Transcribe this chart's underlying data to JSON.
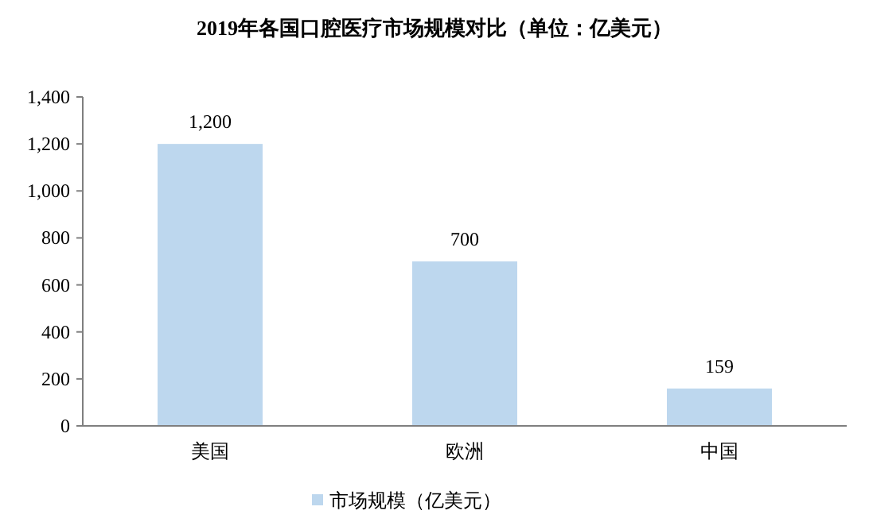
{
  "chart_data": {
    "type": "bar",
    "title": "2019年各国口腔医疗市场规模对比（单位：亿美元）",
    "categories": [
      "美国",
      "欧洲",
      "中国"
    ],
    "series": [
      {
        "name": "市场规模（亿美元）",
        "color": "#bdd7ee",
        "values": [
          1200,
          700,
          159
        ]
      }
    ],
    "ylim": [
      0,
      1400
    ],
    "yticks": [
      {
        "value": 0,
        "label": "0"
      },
      {
        "value": 200,
        "label": "200"
      },
      {
        "value": 400,
        "label": "400"
      },
      {
        "value": 600,
        "label": "600"
      },
      {
        "value": 800,
        "label": "800"
      },
      {
        "value": 1000,
        "label": "1,000"
      },
      {
        "value": 1200,
        "label": "1,200"
      },
      {
        "value": 1400,
        "label": "1,400"
      }
    ],
    "value_labels": [
      "1,200",
      "700",
      "159"
    ],
    "grid": false,
    "legend": "bottom"
  }
}
